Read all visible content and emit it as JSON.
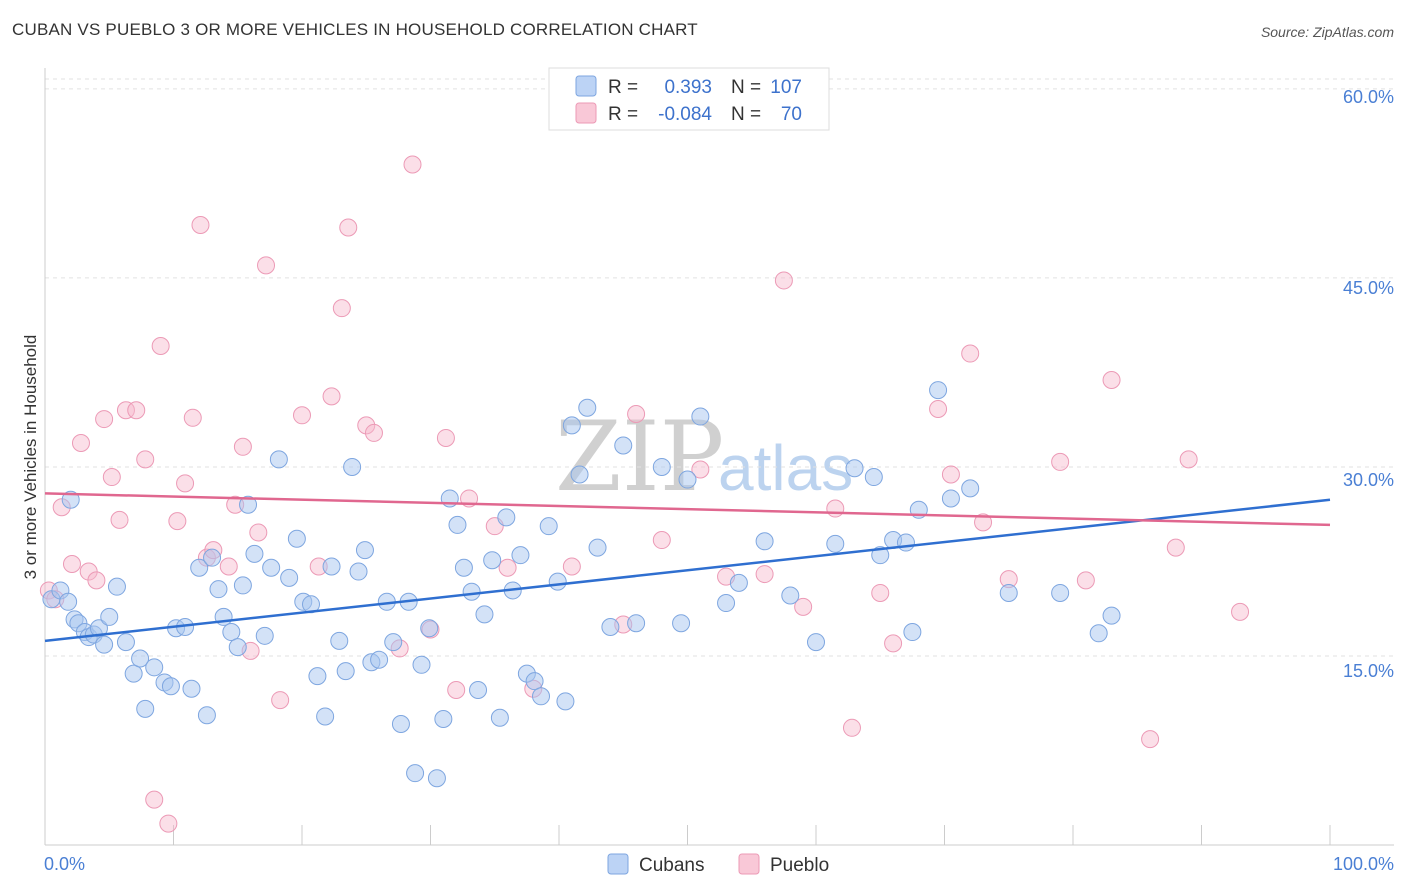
{
  "title": "CUBAN VS PUEBLO 3 OR MORE VEHICLES IN HOUSEHOLD CORRELATION CHART",
  "source": "Source: ZipAtlas.com",
  "watermark": {
    "zip": "ZIP",
    "atlas": "atlas"
  },
  "colors": {
    "blue": "#8fb5ea",
    "blue_line": "#2f6fd0",
    "pink": "#f2a6bf",
    "pink_line": "#e0678f"
  },
  "legend": {
    "rows": [
      {
        "r_label": "R =",
        "r_value": "0.393",
        "n_label": "N =",
        "n_value": "107"
      },
      {
        "r_label": "R =",
        "r_value": "-0.084",
        "n_label": "N =",
        "n_value": "70"
      }
    ]
  },
  "bottom_legend": {
    "cubans": "Cubans",
    "pueblo": "Pueblo"
  },
  "chart_data": {
    "type": "scatter",
    "title": "CUBAN VS PUEBLO 3 OR MORE VEHICLES IN HOUSEHOLD CORRELATION CHART",
    "xlabel": "",
    "ylabel": "3 or more Vehicles in Household",
    "xlim": [
      0,
      100
    ],
    "ylim": [
      0,
      61.5
    ],
    "x_tick_labels": [
      "0.0%",
      "100.0%"
    ],
    "y_ticks": [
      15,
      30,
      45,
      60
    ],
    "y_tick_labels": [
      "15.0%",
      "30.0%",
      "45.0%",
      "60.0%"
    ],
    "series": [
      {
        "name": "Cubans",
        "r": 0.393,
        "n": 107,
        "trend": {
          "x": [
            0,
            100
          ],
          "y": [
            16.2,
            27.4
          ]
        },
        "x": [
          0.5,
          1.2,
          1.8,
          2.3,
          2.6,
          3.1,
          3.4,
          3.8,
          4.2,
          4.6,
          5.0,
          5.6,
          6.3,
          6.9,
          7.4,
          7.8,
          8.5,
          9.3,
          9.8,
          10.2,
          10.9,
          11.4,
          12.0,
          12.6,
          13.0,
          13.5,
          13.9,
          14.5,
          15.0,
          15.4,
          15.8,
          16.3,
          17.1,
          17.6,
          18.2,
          19.0,
          19.6,
          20.1,
          20.7,
          21.2,
          21.8,
          22.3,
          22.9,
          23.4,
          23.9,
          24.4,
          24.9,
          25.4,
          26.0,
          26.6,
          27.1,
          27.7,
          28.3,
          28.8,
          29.3,
          29.9,
          30.5,
          31.0,
          31.5,
          32.1,
          32.6,
          33.2,
          33.7,
          34.2,
          34.8,
          35.4,
          35.9,
          36.4,
          37.0,
          37.5,
          38.1,
          38.6,
          39.2,
          39.9,
          40.5,
          41.0,
          41.6,
          42.2,
          43.0,
          44.0,
          45.0,
          46.0,
          48.0,
          49.5,
          51.0,
          53.0,
          54.0,
          56.0,
          58.0,
          60.0,
          61.5,
          63.0,
          64.5,
          65.0,
          66.0,
          67.5,
          68.0,
          69.5,
          70.5,
          72.0,
          75.0,
          79.0,
          82.0,
          83.0,
          2.0,
          50.0,
          67.0
        ],
        "y": [
          19.5,
          20.2,
          19.3,
          17.9,
          17.6,
          16.9,
          16.5,
          16.7,
          17.2,
          15.9,
          18.1,
          20.5,
          16.1,
          13.6,
          14.8,
          10.8,
          14.1,
          12.9,
          12.6,
          17.2,
          17.3,
          12.4,
          22.0,
          10.3,
          22.8,
          20.3,
          18.1,
          16.9,
          15.7,
          20.6,
          27.0,
          23.1,
          16.6,
          22.0,
          30.6,
          21.2,
          24.3,
          19.3,
          19.1,
          13.4,
          10.2,
          22.1,
          16.2,
          13.8,
          30.0,
          21.7,
          23.4,
          14.5,
          14.7,
          19.3,
          16.1,
          9.6,
          19.3,
          5.7,
          14.3,
          17.2,
          5.3,
          10.0,
          27.5,
          25.4,
          22.0,
          20.1,
          12.3,
          18.3,
          22.6,
          10.1,
          26.0,
          20.2,
          23.0,
          13.6,
          13.0,
          11.8,
          25.3,
          20.9,
          11.4,
          33.3,
          29.4,
          34.7,
          23.6,
          17.3,
          31.7,
          17.6,
          30.0,
          17.6,
          34.0,
          19.2,
          20.8,
          24.1,
          19.8,
          16.1,
          23.9,
          29.9,
          29.2,
          23.0,
          24.2,
          16.9,
          26.6,
          36.1,
          27.5,
          28.3,
          20.0,
          20.0,
          16.8,
          18.2,
          27.4,
          29.0,
          24.0
        ]
      },
      {
        "name": "Pueblo",
        "r": -0.084,
        "n": 70,
        "trend": {
          "x": [
            0,
            100
          ],
          "y": [
            27.9,
            25.4
          ]
        },
        "x": [
          0.3,
          0.8,
          1.3,
          2.1,
          2.8,
          3.4,
          4.0,
          4.6,
          5.2,
          5.8,
          6.3,
          7.1,
          7.8,
          8.5,
          9.0,
          9.6,
          10.3,
          10.9,
          11.5,
          12.1,
          12.6,
          13.1,
          14.3,
          14.8,
          15.4,
          16.0,
          16.6,
          17.2,
          18.3,
          20.0,
          21.3,
          22.3,
          23.1,
          23.6,
          25.0,
          25.6,
          27.6,
          28.6,
          30.0,
          31.2,
          32.0,
          33.0,
          35.0,
          36.0,
          38.0,
          41.0,
          45.0,
          46.0,
          48.0,
          51.0,
          53.0,
          56.0,
          57.5,
          59.0,
          61.5,
          62.8,
          65.0,
          66.0,
          69.5,
          70.5,
          72.0,
          73.0,
          75.0,
          79.0,
          81.0,
          83.0,
          86.0,
          88.0,
          89.0,
          93.0
        ],
        "y": [
          20.2,
          19.5,
          26.8,
          22.3,
          31.9,
          21.7,
          21.0,
          33.8,
          29.2,
          25.8,
          34.5,
          34.5,
          30.6,
          3.6,
          39.6,
          1.7,
          25.7,
          28.7,
          33.9,
          49.2,
          22.8,
          23.4,
          22.1,
          27.0,
          31.6,
          15.4,
          24.8,
          46.0,
          11.5,
          34.1,
          22.1,
          35.6,
          42.6,
          49.0,
          33.3,
          32.7,
          15.6,
          54.0,
          17.1,
          32.3,
          12.3,
          27.5,
          25.3,
          22.0,
          12.4,
          22.1,
          17.5,
          34.2,
          24.2,
          29.8,
          21.3,
          21.5,
          44.8,
          18.9,
          26.7,
          9.3,
          20.0,
          16.0,
          34.6,
          29.4,
          39.0,
          25.6,
          21.1,
          30.4,
          21.0,
          36.9,
          8.4,
          23.6,
          30.6,
          18.5
        ]
      }
    ]
  }
}
